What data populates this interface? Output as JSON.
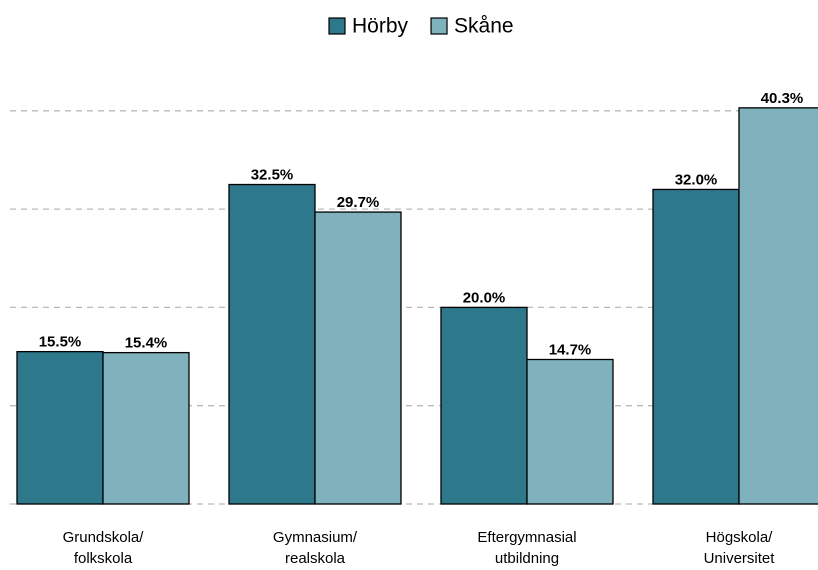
{
  "chart_data": {
    "type": "bar",
    "categories": [
      [
        "Grundskola/",
        "folkskola"
      ],
      [
        "Gymnasium/",
        "realskola"
      ],
      [
        "Eftergymnasial",
        "utbildning"
      ],
      [
        "Högskola/",
        "Universitet"
      ]
    ],
    "series": [
      {
        "name": "Hörby",
        "color": "#2e788c",
        "values": [
          15.5,
          32.5,
          20.0,
          32.0
        ],
        "value_labels": [
          "15.5%",
          "32.5%",
          "20.0%",
          "32.0%"
        ]
      },
      {
        "name": "Skåne",
        "color": "#7fb2bc",
        "values": [
          15.4,
          29.7,
          14.7,
          40.3
        ],
        "value_labels": [
          "15.4%",
          "29.7%",
          "14.7%",
          "40.3%"
        ]
      }
    ],
    "ylim": [
      0,
      45
    ],
    "yticks": [
      0,
      10,
      20,
      30,
      40
    ],
    "grid": true,
    "legend": "top"
  }
}
